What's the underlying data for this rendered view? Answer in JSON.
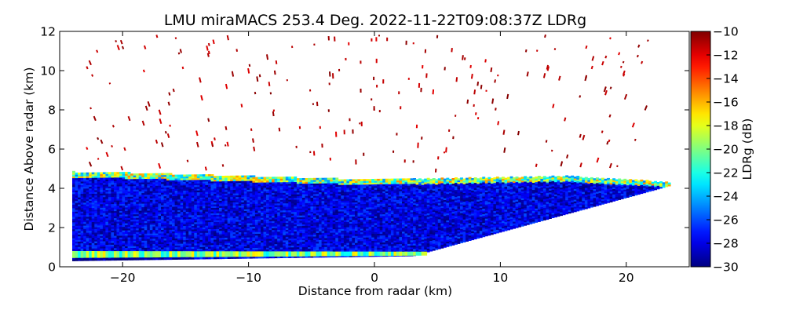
{
  "chart_data": {
    "type": "heatmap",
    "title": "LMU miraMACS 253.4 Deg. 2022-11-22T09:08:37Z  LDRg",
    "xlabel": "Distance from radar (km)",
    "ylabel": "Distance Above radar  (km)",
    "xlim": [
      -25,
      25
    ],
    "ylim": [
      0,
      12
    ],
    "x_ticks": [
      -20,
      -10,
      0,
      10,
      20
    ],
    "x_tick_labels": [
      "−20",
      "−10",
      "0",
      "10",
      "20"
    ],
    "y_ticks": [
      0,
      2,
      4,
      6,
      8,
      10,
      12
    ],
    "y_tick_labels": [
      "0",
      "2",
      "4",
      "6",
      "8",
      "10",
      "12"
    ],
    "colorbar": {
      "label": "LDRg (dB)",
      "range": [
        -30,
        -10
      ],
      "colormap": "jet",
      "ticks": [
        -30,
        -28,
        -26,
        -24,
        -22,
        -20,
        -18,
        -16,
        -14,
        -12,
        -10
      ],
      "tick_labels": [
        "−30",
        "−28",
        "−26",
        "−24",
        "−22",
        "−20",
        "−18",
        "−16",
        "−14",
        "−12",
        "−10"
      ]
    },
    "scan": {
      "azimuth_deg": 253.4,
      "left_range_km": -24,
      "right_range_km": 23.5,
      "cloud_top_center_km": 4.4,
      "cloud_top_edge_km": 4.8,
      "dominant_ldr_db": -28,
      "cloud_top_ldr_db": -20,
      "near_ground_band_ldr_db": -20,
      "sparse_echo_ldr_db": -10
    }
  }
}
